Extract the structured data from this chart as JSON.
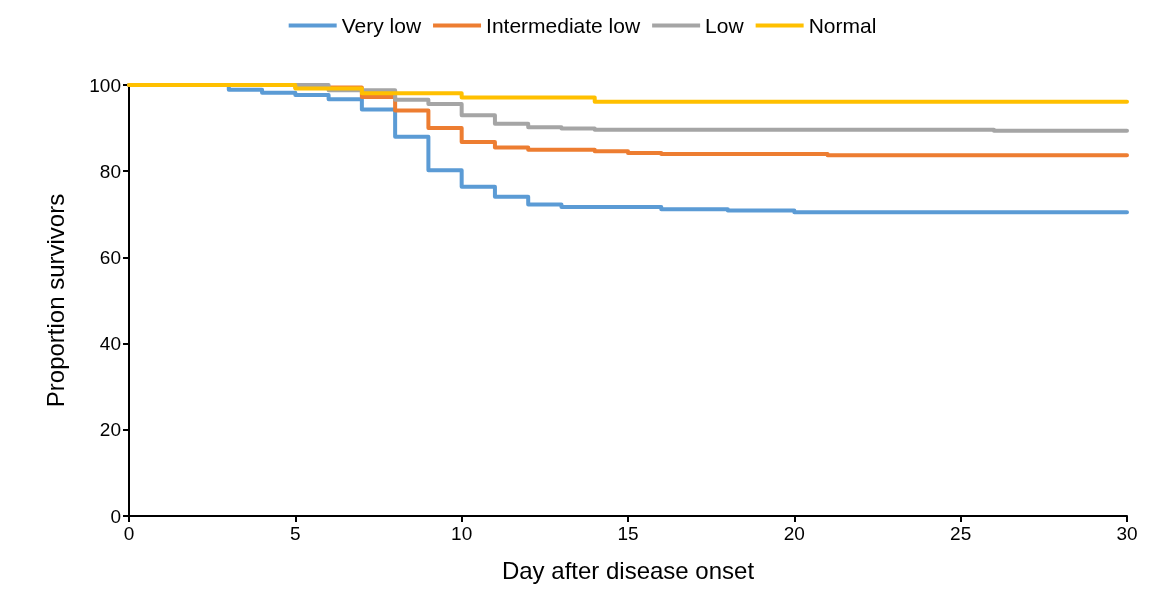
{
  "chart_data": {
    "type": "step",
    "xlabel": "Day after disease onset",
    "ylabel": "Proportion survivors",
    "xlim": [
      0,
      30
    ],
    "ylim": [
      0,
      100
    ],
    "xticks": [
      0,
      5,
      10,
      15,
      20,
      25,
      30
    ],
    "yticks": [
      0,
      20,
      40,
      60,
      80,
      100
    ],
    "grid": false,
    "legend": "top",
    "marker": "none",
    "line_style": "solid",
    "series": [
      {
        "name": "Very low",
        "color": "#5b9bd5",
        "x": [
          0,
          3,
          4,
          5,
          6,
          7,
          8,
          9,
          10,
          11,
          12,
          13,
          16,
          18,
          20,
          30
        ],
        "values": [
          100,
          98.9,
          98.2,
          97.7,
          96.7,
          94.3,
          88.0,
          80.2,
          76.4,
          74.1,
          72.3,
          71.7,
          71.2,
          70.9,
          70.5,
          70.5
        ]
      },
      {
        "name": "Intermediate low",
        "color": "#ed7d31",
        "x": [
          0,
          5,
          7,
          8,
          9,
          10,
          11,
          12,
          14,
          15,
          16,
          21,
          30
        ],
        "values": [
          100,
          99.4,
          97.2,
          94.1,
          90.0,
          86.8,
          85.5,
          85.0,
          84.6,
          84.2,
          84.0,
          83.7,
          83.7
        ]
      },
      {
        "name": "Low",
        "color": "#a5a5a5",
        "x": [
          0,
          6,
          8,
          9,
          10,
          11,
          12,
          13,
          14,
          26,
          30
        ],
        "values": [
          100,
          98.8,
          96.6,
          95.6,
          93.0,
          91.0,
          90.2,
          89.9,
          89.6,
          89.4,
          89.4
        ]
      },
      {
        "name": "Normal",
        "color": "#ffc000",
        "x": [
          0,
          5,
          7,
          10,
          14,
          30
        ],
        "values": [
          100,
          99.2,
          98.1,
          97.1,
          96.1,
          96.1
        ]
      }
    ]
  }
}
